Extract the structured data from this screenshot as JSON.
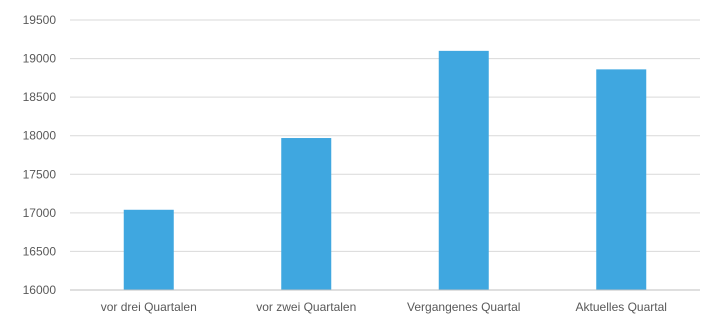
{
  "chart_data": {
    "type": "bar",
    "title": "",
    "xlabel": "",
    "ylabel": "",
    "categories": [
      "vor drei Quartalen",
      "vor zwei Quartalen",
      "Vergangenes Quartal",
      "Aktuelles Quartal"
    ],
    "values": [
      17040,
      17970,
      19100,
      18860
    ],
    "ylim": [
      16000,
      19500
    ],
    "yticks": [
      16000,
      16500,
      17000,
      17500,
      18000,
      18500,
      19000,
      19500
    ],
    "grid": true,
    "legend": "none",
    "colors": {
      "bar": "#3fa7e0",
      "grid": "#d9d9d9",
      "axis": "#bfbfbf",
      "text": "#595959"
    }
  }
}
